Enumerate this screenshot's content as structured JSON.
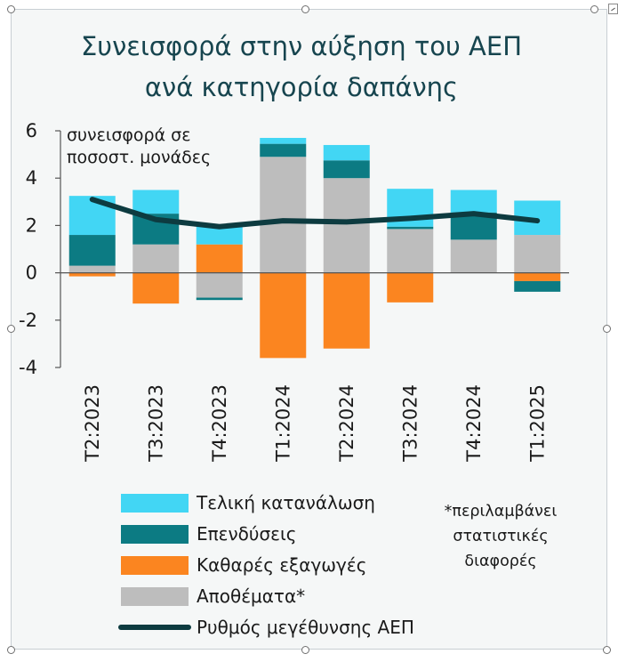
{
  "chart_data": {
    "type": "bar",
    "stacked": true,
    "title": [
      "Συνεισφορά στην αύξηση του ΑΕΠ",
      "ανά κατηγορία δαπάνης"
    ],
    "ylabel": [
      "συνεισφορά σε",
      "ποσοστ. μονάδες"
    ],
    "ylim": [
      -4,
      6
    ],
    "yticks": [
      -4,
      -2,
      0,
      2,
      4,
      6
    ],
    "categories": [
      "Τ2:2023",
      "Τ3:2023",
      "Τ4:2023",
      "Τ1:2024",
      "Τ2:2024",
      "Τ3:2024",
      "Τ4:2024",
      "Τ1:2025"
    ],
    "series": [
      {
        "name": "Τελική κατανάλωση",
        "color": "#42d6f4",
        "values": [
          1.65,
          1.0,
          0.85,
          0.25,
          0.65,
          1.6,
          0.95,
          1.45
        ]
      },
      {
        "name": "Επενδύσεις",
        "color": "#0c7b83",
        "values": [
          1.3,
          1.3,
          -0.1,
          0.55,
          0.75,
          0.1,
          1.15,
          -0.45
        ]
      },
      {
        "name": "Καθαρές εξαγωγές",
        "color": "#fb8520",
        "values": [
          -0.15,
          -1.3,
          1.2,
          -3.6,
          -3.2,
          -1.25,
          0.0,
          -0.35
        ]
      },
      {
        "name": "Αποθέματα*",
        "color": "#bdbdbd",
        "values": [
          0.3,
          1.2,
          -1.05,
          4.9,
          4.0,
          1.85,
          1.4,
          1.6
        ]
      }
    ],
    "line": {
      "name": "Ρυθμός μεγέθυνσης ΑΕΠ",
      "color": "#0d3b40",
      "values": [
        3.1,
        2.25,
        1.95,
        2.2,
        2.15,
        2.3,
        2.5,
        2.2
      ]
    },
    "note": [
      "*περιλαμβάνει",
      "στατιστικές",
      "διαφορές"
    ],
    "legend_position": "bottom"
  }
}
